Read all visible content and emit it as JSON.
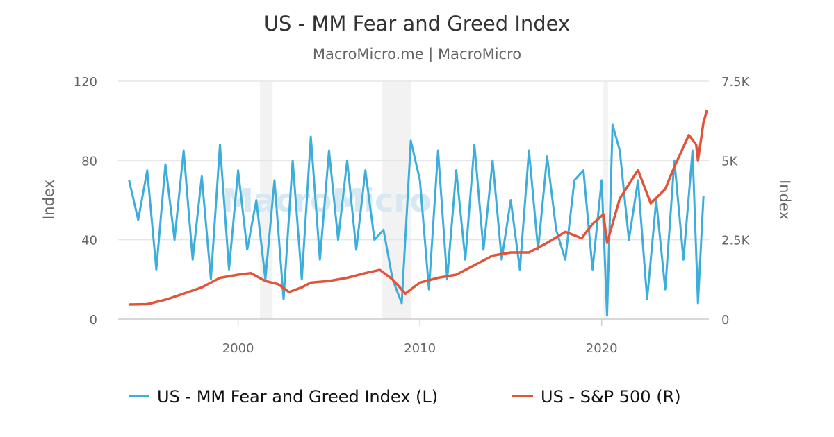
{
  "chart_data": {
    "type": "line",
    "title": "US - MM Fear and Greed Index",
    "subtitle": "MacroMicro.me | MacroMicro",
    "watermark": "MacroMicro",
    "x_ticks": [
      "2000",
      "2010",
      "2020"
    ],
    "xlim": [
      1993.4,
      2025.9
    ],
    "left_axis": {
      "label": "Index",
      "ylim": [
        0,
        120
      ],
      "ticks": [
        "0",
        "40",
        "80",
        "120"
      ]
    },
    "right_axis": {
      "label": "Index",
      "ylim": [
        0,
        7500
      ],
      "ticks": [
        "0",
        "2.5K",
        "5K",
        "7.5K"
      ]
    },
    "shaded_periods": [
      [
        2001.2,
        2001.9
      ],
      [
        2007.9,
        2009.5
      ],
      [
        2020.1,
        2020.35
      ]
    ],
    "grid": true,
    "legend_position": "bottom",
    "series": [
      {
        "name": "US - MM Fear and Greed Index (L)",
        "axis": "left",
        "color": "#3daedb",
        "x": [
          1994.0,
          1994.5,
          1995.0,
          1995.5,
          1996.0,
          1996.5,
          1997.0,
          1997.5,
          1998.0,
          1998.5,
          1999.0,
          1999.5,
          2000.0,
          2000.5,
          2001.0,
          2001.5,
          2002.0,
          2002.5,
          2003.0,
          2003.5,
          2004.0,
          2004.5,
          2005.0,
          2005.5,
          2006.0,
          2006.5,
          2007.0,
          2007.5,
          2008.0,
          2008.5,
          2009.0,
          2009.5,
          2010.0,
          2010.5,
          2011.0,
          2011.5,
          2012.0,
          2012.5,
          2013.0,
          2013.5,
          2014.0,
          2014.5,
          2015.0,
          2015.5,
          2016.0,
          2016.5,
          2017.0,
          2017.5,
          2018.0,
          2018.5,
          2019.0,
          2019.5,
          2020.0,
          2020.3,
          2020.6,
          2021.0,
          2021.5,
          2022.0,
          2022.5,
          2023.0,
          2023.5,
          2024.0,
          2024.5,
          2025.0,
          2025.3,
          2025.6
        ],
        "values": [
          70,
          50,
          75,
          25,
          78,
          40,
          85,
          30,
          72,
          20,
          88,
          25,
          75,
          35,
          60,
          20,
          70,
          10,
          80,
          20,
          92,
          30,
          85,
          40,
          80,
          35,
          75,
          40,
          45,
          20,
          8,
          90,
          70,
          15,
          85,
          20,
          75,
          30,
          88,
          35,
          80,
          30,
          60,
          25,
          85,
          35,
          82,
          45,
          30,
          70,
          75,
          25,
          70,
          2,
          98,
          85,
          40,
          70,
          10,
          60,
          15,
          80,
          30,
          85,
          8,
          62
        ]
      },
      {
        "name": "US - S&P 500 (R)",
        "axis": "right",
        "color": "#e0553a",
        "x": [
          1994.0,
          1995.0,
          1996.0,
          1997.0,
          1998.0,
          1999.0,
          2000.0,
          2000.7,
          2001.5,
          2002.2,
          2002.8,
          2003.5,
          2004.0,
          2005.0,
          2006.0,
          2007.0,
          2007.8,
          2008.5,
          2009.2,
          2010.0,
          2011.0,
          2012.0,
          2013.0,
          2014.0,
          2015.0,
          2016.0,
          2017.0,
          2018.0,
          2018.9,
          2019.5,
          2020.1,
          2020.3,
          2021.0,
          2022.0,
          2022.7,
          2023.5,
          2024.0,
          2024.8,
          2025.2,
          2025.3,
          2025.6,
          2025.8
        ],
        "values": [
          460,
          470,
          610,
          800,
          1000,
          1300,
          1400,
          1450,
          1200,
          1100,
          850,
          1000,
          1150,
          1200,
          1300,
          1450,
          1550,
          1250,
          800,
          1150,
          1300,
          1400,
          1700,
          2000,
          2100,
          2100,
          2400,
          2750,
          2550,
          3000,
          3300,
          2400,
          3800,
          4700,
          3650,
          4100,
          4800,
          5800,
          5500,
          5000,
          6200,
          6600
        ]
      }
    ]
  }
}
